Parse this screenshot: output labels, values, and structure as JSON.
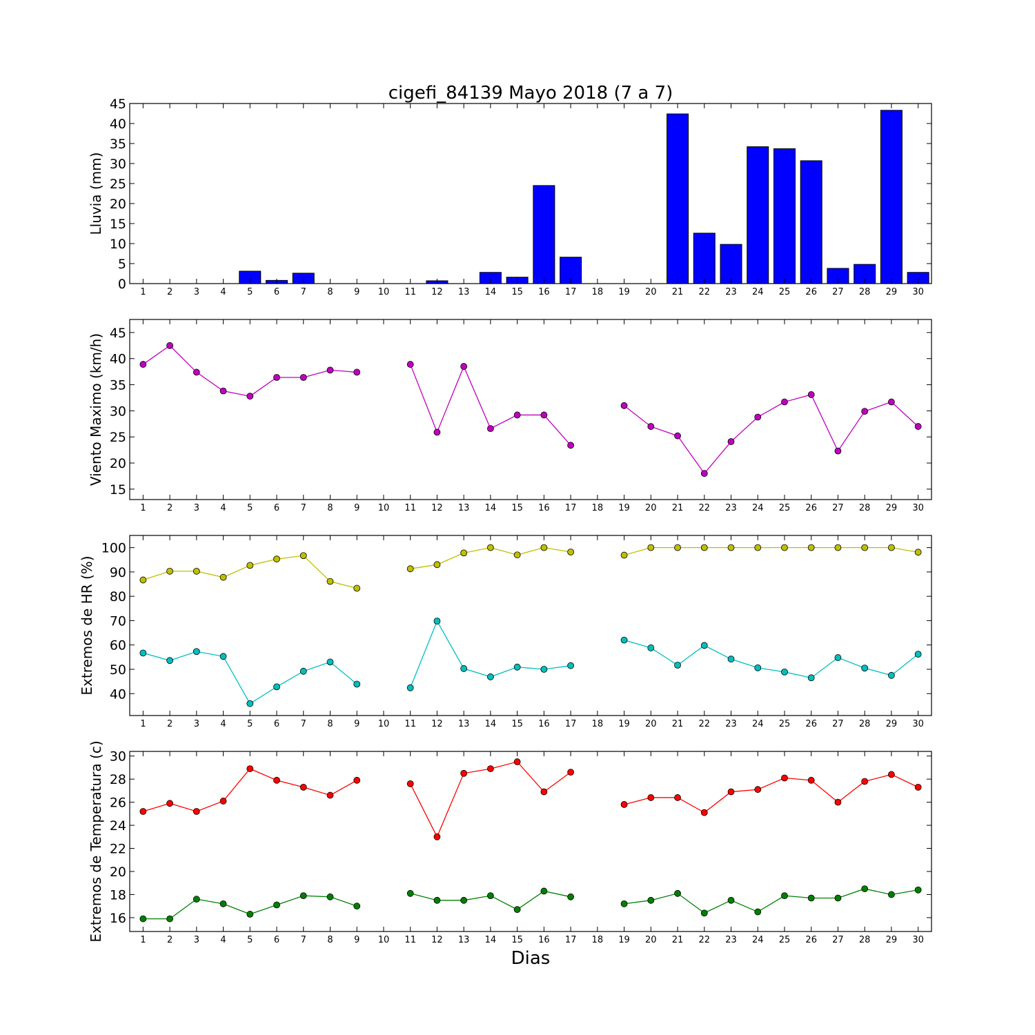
{
  "title": "cigefi_84139 Mayo 2018  (7 a 7)",
  "xlabel": "Dias",
  "chart_data": [
    {
      "type": "bar",
      "ylabel": "Lluvia (mm)",
      "ylim": [
        0,
        45
      ],
      "yticks": [
        0,
        5,
        10,
        15,
        20,
        25,
        30,
        35,
        40,
        45
      ],
      "xlim": [
        0.5,
        30.5
      ],
      "xticks": [
        1,
        2,
        3,
        4,
        5,
        6,
        7,
        8,
        9,
        10,
        11,
        12,
        13,
        14,
        15,
        16,
        17,
        18,
        19,
        20,
        21,
        22,
        23,
        24,
        25,
        26,
        27,
        28,
        29,
        30
      ],
      "series": [
        {
          "color": "#0000ff",
          "values": [
            0,
            0,
            0,
            0,
            3.1,
            0.8,
            2.6,
            0,
            0,
            0,
            0,
            0.7,
            0,
            2.8,
            1.6,
            24.5,
            6.6,
            0,
            0,
            0,
            42.4,
            12.6,
            9.8,
            34.2,
            33.7,
            30.7,
            3.8,
            4.8,
            43.3,
            2.8
          ]
        }
      ]
    },
    {
      "type": "line",
      "ylabel": "Viento Maximo (km/h)",
      "ylim": [
        13,
        47.5
      ],
      "yticks": [
        15,
        20,
        25,
        30,
        35,
        40,
        45
      ],
      "xlim": [
        0.5,
        30.5
      ],
      "xticks": [
        1,
        2,
        3,
        4,
        5,
        6,
        7,
        8,
        9,
        10,
        11,
        12,
        13,
        14,
        15,
        16,
        17,
        18,
        19,
        20,
        21,
        22,
        23,
        24,
        25,
        26,
        27,
        28,
        29,
        30
      ],
      "series": [
        {
          "color": "#bf00bf",
          "values": [
            38.9,
            42.5,
            37.4,
            33.8,
            32.8,
            36.4,
            36.4,
            37.8,
            37.4,
            null,
            38.9,
            25.9,
            38.5,
            26.6,
            29.2,
            29.2,
            23.4,
            null,
            31.0,
            27.0,
            25.2,
            18.0,
            24.1,
            28.8,
            31.7,
            33.1,
            22.3,
            29.9,
            31.7,
            27.0
          ]
        }
      ]
    },
    {
      "type": "line",
      "ylabel": "Extremos de HR (%)",
      "ylim": [
        31,
        105
      ],
      "yticks": [
        40,
        50,
        60,
        70,
        80,
        90,
        100
      ],
      "xlim": [
        0.5,
        30.5
      ],
      "xticks": [
        1,
        2,
        3,
        4,
        5,
        6,
        7,
        8,
        9,
        10,
        11,
        12,
        13,
        14,
        15,
        16,
        17,
        18,
        19,
        20,
        21,
        22,
        23,
        24,
        25,
        26,
        27,
        28,
        29,
        30
      ],
      "series": [
        {
          "color": "#bfbf00",
          "values": [
            86.7,
            90.3,
            90.3,
            87.8,
            92.7,
            95.3,
            96.7,
            86.1,
            83.3,
            null,
            91.3,
            93.0,
            97.8,
            100,
            97.0,
            100,
            98.2,
            null,
            96.9,
            100,
            100,
            100,
            100,
            100,
            100,
            100,
            100,
            100,
            100,
            98.1
          ]
        },
        {
          "color": "#00bfbf",
          "values": [
            56.7,
            53.6,
            57.3,
            55.3,
            35.9,
            42.8,
            49.2,
            53.0,
            43.9,
            null,
            42.4,
            69.8,
            50.3,
            46.9,
            50.9,
            50.0,
            51.5,
            null,
            62.0,
            58.8,
            51.7,
            59.8,
            54.2,
            50.6,
            48.9,
            46.5,
            54.8,
            50.5,
            47.5,
            56.2
          ]
        }
      ]
    },
    {
      "type": "line",
      "ylabel": "Extremos de Temperatura (c)",
      "ylim": [
        14.8,
        30.4
      ],
      "yticks": [
        16,
        18,
        20,
        22,
        24,
        26,
        28,
        30
      ],
      "xlim": [
        0.5,
        30.5
      ],
      "xticks": [
        1,
        2,
        3,
        4,
        5,
        6,
        7,
        8,
        9,
        10,
        11,
        12,
        13,
        14,
        15,
        16,
        17,
        18,
        19,
        20,
        21,
        22,
        23,
        24,
        25,
        26,
        27,
        28,
        29,
        30
      ],
      "series": [
        {
          "color": "#ff0000",
          "values": [
            25.2,
            25.9,
            25.2,
            26.1,
            28.9,
            27.9,
            27.3,
            26.6,
            27.9,
            null,
            27.6,
            23.0,
            28.5,
            28.9,
            29.5,
            26.9,
            28.6,
            null,
            25.8,
            26.4,
            26.4,
            25.1,
            26.9,
            27.1,
            28.1,
            27.9,
            26.0,
            27.8,
            28.4,
            27.3
          ]
        },
        {
          "color": "#008000",
          "values": [
            15.9,
            15.9,
            17.6,
            17.2,
            16.3,
            17.1,
            17.9,
            17.8,
            17.0,
            null,
            18.1,
            17.5,
            17.5,
            17.9,
            16.7,
            18.3,
            17.8,
            null,
            17.2,
            17.5,
            18.1,
            16.4,
            17.5,
            16.5,
            17.9,
            17.7,
            17.7,
            18.5,
            18.0,
            18.4
          ]
        }
      ]
    }
  ]
}
